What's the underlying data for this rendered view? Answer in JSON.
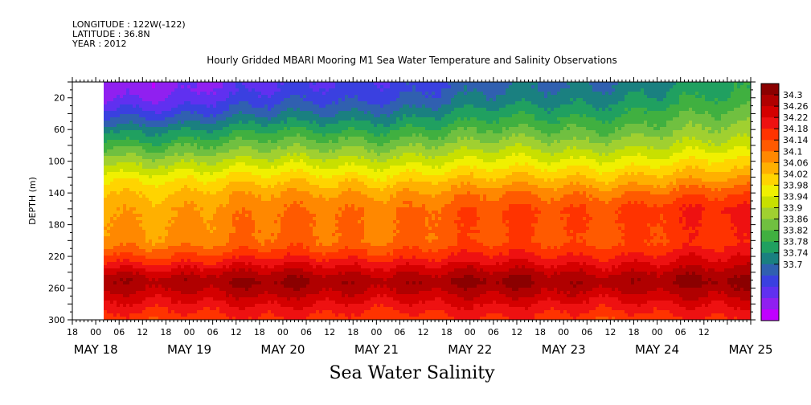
{
  "header": {
    "longitude": "LONGITUDE : 122W(-122)",
    "latitude": "LATITUDE : 36.8N",
    "year": "YEAR : 2012"
  },
  "colors": {
    "blank": "#ffffff",
    "frame": "#000000"
  },
  "chart_data": {
    "type": "heatmap",
    "title": "Hourly Gridded MBARI Mooring M1 Sea Water Temperature and Salinity Observations",
    "subtitle": "Sea Water Salinity",
    "ylabel": "DEPTH (m)",
    "ylim": [
      300,
      0
    ],
    "yticks": [
      "20",
      "60",
      "100",
      "140",
      "180",
      "220",
      "260",
      "300"
    ],
    "xtick_hours": [
      "18",
      "00",
      "06",
      "12",
      "18",
      "00",
      "06",
      "12",
      "18",
      "00",
      "06",
      "12",
      "18",
      "00",
      "06",
      "12",
      "18",
      "00",
      "06",
      "12",
      "18",
      "00",
      "06",
      "12",
      "18",
      "00",
      "06",
      "12"
    ],
    "date_labels": [
      "MAY 18",
      "MAY 19",
      "MAY 20",
      "MAY 21",
      "MAY 22",
      "MAY 23",
      "MAY 24",
      "MAY 25"
    ],
    "x_range_hours": [
      -6,
      168
    ],
    "data_start_hour": 0,
    "colorbar": {
      "levels": [
        "34.3",
        "34.26",
        "34.22",
        "34.18",
        "34.14",
        "34.1",
        "34.06",
        "34.02",
        "33.98",
        "33.94",
        "33.9",
        "33.86",
        "33.82",
        "33.78",
        "33.74",
        "33.7"
      ],
      "colors": [
        "#8b0000",
        "#b00000",
        "#d40000",
        "#ee1111",
        "#ff3300",
        "#ff5a00",
        "#ff8800",
        "#ffb000",
        "#ffd400",
        "#f0f000",
        "#c8e000",
        "#a0d030",
        "#70c040",
        "#40b040",
        "#20a060",
        "#1a8080",
        "#3060b0",
        "#3a40e0",
        "#6030f0",
        "#9020f0",
        "#c000ff"
      ]
    },
    "profile": {
      "description_values_depth_m": [
        5,
        20,
        40,
        60,
        80,
        100,
        120,
        140,
        160,
        180,
        200,
        220,
        240,
        250,
        260,
        280,
        300
      ],
      "salinity_early": [
        33.72,
        33.74,
        33.79,
        33.86,
        33.92,
        33.98,
        34.04,
        34.08,
        34.1,
        34.11,
        34.12,
        34.18,
        34.26,
        34.29,
        34.27,
        34.22,
        34.18
      ],
      "salinity_late": [
        33.88,
        33.9,
        33.93,
        33.96,
        34.0,
        34.05,
        34.1,
        34.16,
        34.2,
        34.19,
        34.18,
        34.22,
        34.27,
        34.29,
        34.27,
        34.22,
        34.18
      ]
    }
  }
}
